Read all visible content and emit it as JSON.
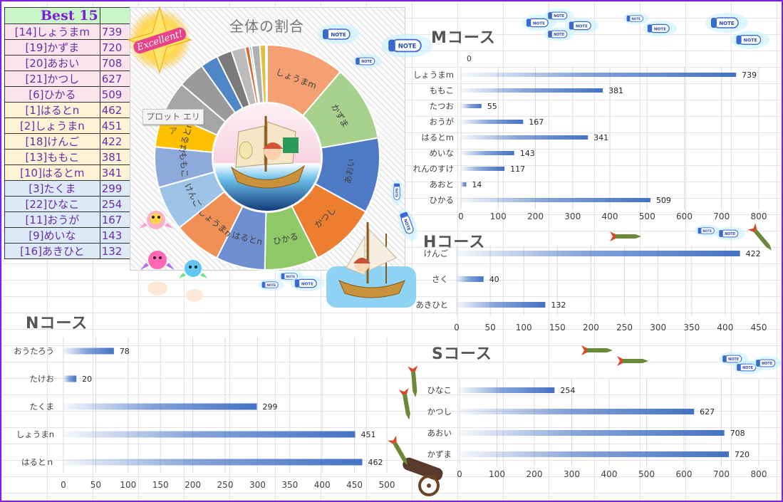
{
  "ranking": {
    "title": "Best 15",
    "rows": [
      {
        "label": "[14]しょうまm",
        "value": "739",
        "group": "pink"
      },
      {
        "label": "[19]かずま",
        "value": "720",
        "group": "pink"
      },
      {
        "label": "[20]あおい",
        "value": "708",
        "group": "pink"
      },
      {
        "label": "[21]かつし",
        "value": "627",
        "group": "pink"
      },
      {
        "label": "[6]ひかる",
        "value": "509",
        "group": "pink"
      },
      {
        "label": "[1]はるとn",
        "value": "462",
        "group": "yel"
      },
      {
        "label": "[2]しょうまn",
        "value": "451",
        "group": "yel"
      },
      {
        "label": "[18]けんご",
        "value": "422",
        "group": "yel"
      },
      {
        "label": "[13]ももこ",
        "value": "381",
        "group": "yel"
      },
      {
        "label": "[10]はるとm",
        "value": "341",
        "group": "yel"
      },
      {
        "label": "[3]たくま",
        "value": "299",
        "group": "blue"
      },
      {
        "label": "[22]ひなこ",
        "value": "254",
        "group": "blue"
      },
      {
        "label": "[11]おうが",
        "value": "167",
        "group": "blue"
      },
      {
        "label": "[9]めいな",
        "value": "143",
        "group": "blue"
      },
      {
        "label": "[16]あきひと",
        "value": "132",
        "group": "blue"
      }
    ]
  },
  "tooltip": {
    "plot_area": "プロット エリア"
  },
  "badge": {
    "text": "Excellent!"
  },
  "note_label": "NOTE",
  "colors": {
    "bar": "#4472c4",
    "frame": "#7b22e6"
  },
  "chart_data": [
    {
      "type": "pie",
      "title": "全体の割合",
      "labels": [
        "しょうまm",
        "かずま",
        "あおい",
        "かつし",
        "ひかる",
        "はるとn",
        "しょうまn",
        "けんご",
        "ももこ",
        "はるとm",
        "たくま",
        "ひなこ",
        "おうが",
        "めいな",
        "あきひと",
        "さく",
        "たけお",
        "おうたろう",
        "たつお",
        "あおと"
      ],
      "values": [
        739,
        720,
        708,
        627,
        509,
        462,
        451,
        422,
        381,
        341,
        299,
        254,
        167,
        143,
        132,
        40,
        20,
        78,
        55,
        14
      ],
      "colors": [
        "#f4a072",
        "#a9d18e",
        "#4e79c4",
        "#ed7d31",
        "#8fc866",
        "#6f8fd0",
        "#f09056",
        "#9dc3e6",
        "#8eaadb",
        "#ffc000",
        "#a5a5a5",
        "#9a9a9a",
        "#4f86c6",
        "#7b7b7b",
        "#bcbcbc",
        "#d96b2b",
        "#6ea0d8",
        "#b0b0b0",
        "#e0c040",
        "#c8a040"
      ]
    },
    {
      "type": "bar",
      "title": "Mコース",
      "categories": [
        "しょうまm",
        "ももこ",
        "たつお",
        "おうが",
        "はるとm",
        "めいな",
        "れんのすけ",
        "あおと",
        "ひかる"
      ],
      "values": [
        739,
        381,
        55,
        167,
        341,
        143,
        117,
        14,
        509
      ],
      "xlim": [
        0,
        800
      ],
      "ticks": [
        0,
        100,
        200,
        300,
        400,
        500,
        600,
        700,
        800
      ],
      "extra_label": "0"
    },
    {
      "type": "bar",
      "title": "Hコース",
      "categories": [
        "けんご",
        "さく",
        "あきひと"
      ],
      "values": [
        422,
        40,
        132
      ],
      "xlim": [
        0,
        450
      ],
      "ticks": [
        0,
        50,
        100,
        150,
        200,
        250,
        300,
        350,
        400,
        450
      ]
    },
    {
      "type": "bar",
      "title": "Nコース",
      "categories": [
        "おうたろう",
        "たけお",
        "たくま",
        "しょうまn",
        "はるとｎ"
      ],
      "values": [
        78,
        20,
        299,
        451,
        462
      ],
      "xlim": [
        0,
        500
      ],
      "ticks": [
        0,
        50,
        100,
        150,
        200,
        250,
        300,
        350,
        400,
        450,
        500
      ]
    },
    {
      "type": "bar",
      "title": "Sコース",
      "categories": [
        "ひなこ",
        "かつし",
        "あおい",
        "かずま"
      ],
      "values": [
        254,
        627,
        708,
        720
      ],
      "xlim": [
        0,
        800
      ],
      "ticks": [
        0,
        100,
        200,
        300,
        400,
        500,
        600,
        700,
        800
      ]
    }
  ]
}
